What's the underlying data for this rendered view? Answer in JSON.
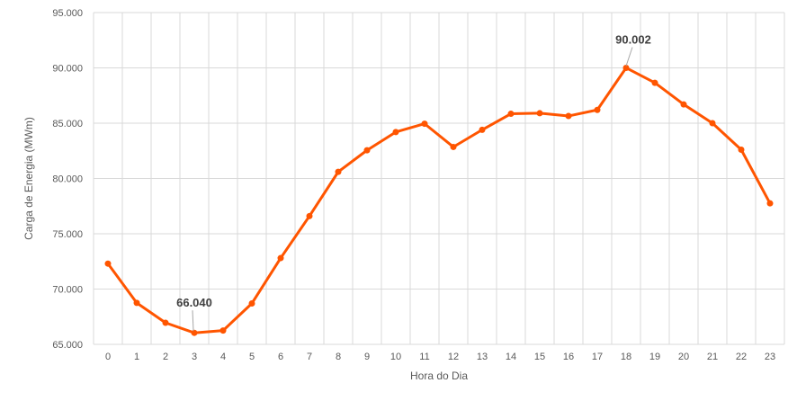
{
  "chart_data": {
    "type": "line",
    "title": "",
    "xlabel": "Hora do Dia",
    "ylabel": "Carga de Energia (MWm)",
    "ylim": [
      65000,
      95000
    ],
    "yticks": [
      65000,
      70000,
      75000,
      80000,
      85000,
      90000,
      95000
    ],
    "ytick_labels": [
      "65.000",
      "70.000",
      "75.000",
      "80.000",
      "85.000",
      "90.000",
      "95.000"
    ],
    "categories": [
      "0",
      "1",
      "2",
      "3",
      "4",
      "5",
      "6",
      "7",
      "8",
      "9",
      "10",
      "11",
      "12",
      "13",
      "14",
      "15",
      "16",
      "17",
      "18",
      "19",
      "20",
      "21",
      "22",
      "23"
    ],
    "values": [
      72300,
      68750,
      66950,
      66040,
      66250,
      68700,
      72800,
      76600,
      80600,
      82550,
      84200,
      84950,
      82850,
      84400,
      85850,
      85900,
      85650,
      86200,
      90002,
      88650,
      86700,
      85000,
      82600,
      77750
    ],
    "annotations": [
      {
        "index": 3,
        "label": "66.040"
      },
      {
        "index": 18,
        "label": "90.002"
      }
    ],
    "grid": true,
    "legend": "none",
    "color": "#FF5500"
  }
}
